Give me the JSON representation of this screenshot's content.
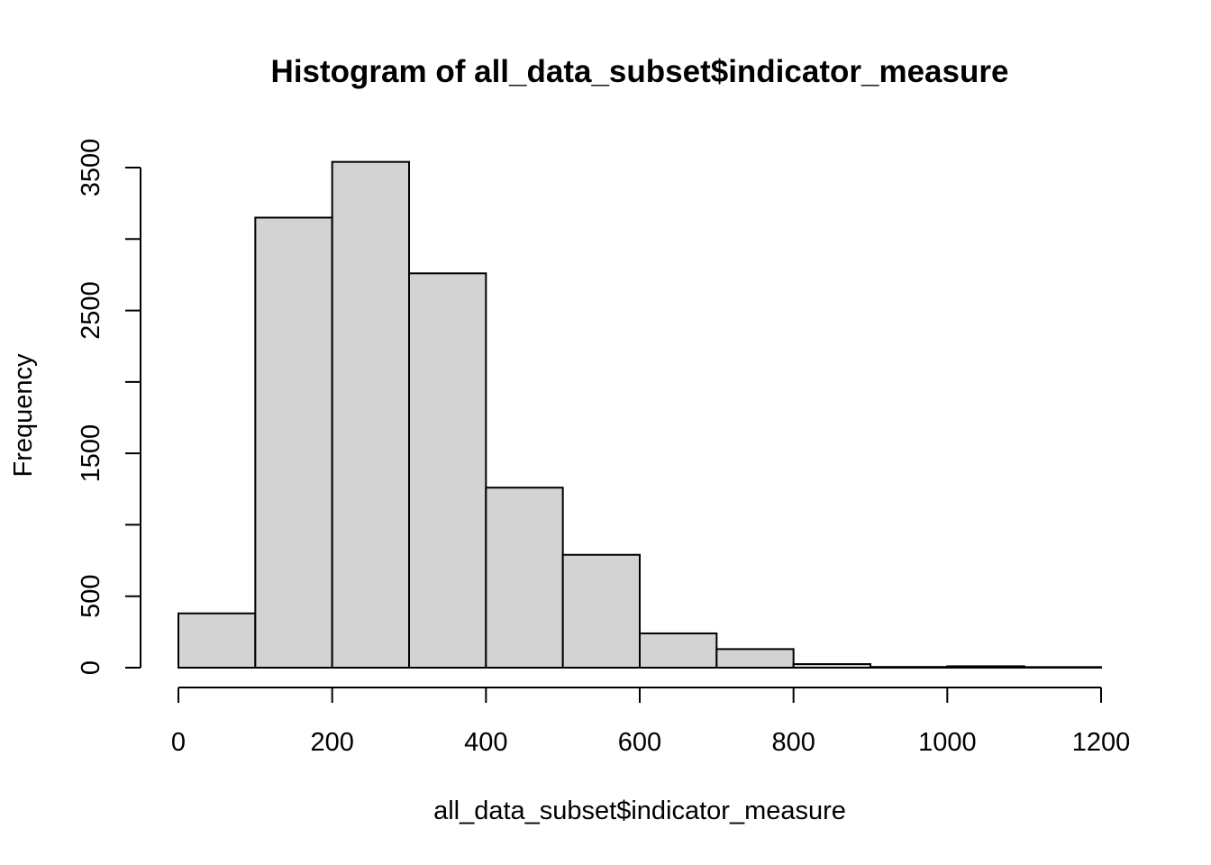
{
  "chart_data": {
    "type": "bar",
    "title": "Histogram of all_data_subset$indicator_measure",
    "xlabel": "all_data_subset$indicator_measure",
    "ylabel": "Frequency",
    "bins": [
      {
        "from": 0,
        "to": 100,
        "count": 380
      },
      {
        "from": 100,
        "to": 200,
        "count": 3150
      },
      {
        "from": 200,
        "to": 300,
        "count": 3540
      },
      {
        "from": 300,
        "to": 400,
        "count": 2760
      },
      {
        "from": 400,
        "to": 500,
        "count": 1260
      },
      {
        "from": 500,
        "to": 600,
        "count": 790
      },
      {
        "from": 600,
        "to": 700,
        "count": 240
      },
      {
        "from": 700,
        "to": 800,
        "count": 130
      },
      {
        "from": 800,
        "to": 900,
        "count": 25
      },
      {
        "from": 900,
        "to": 1000,
        "count": 5
      },
      {
        "from": 1000,
        "to": 1100,
        "count": 10
      },
      {
        "from": 1100,
        "to": 1200,
        "count": 4
      }
    ],
    "xlim": [
      0,
      1200
    ],
    "ylim": [
      0,
      3500
    ],
    "x_ticks": [
      "0",
      "200",
      "400",
      "600",
      "800",
      "1000",
      "1200"
    ],
    "y_ticks": [
      "0",
      "500",
      "1500",
      "2500",
      "3500"
    ],
    "grid": false,
    "legend": "none",
    "bar_fill": "#d3d3d3",
    "bar_edge": "#000000"
  }
}
